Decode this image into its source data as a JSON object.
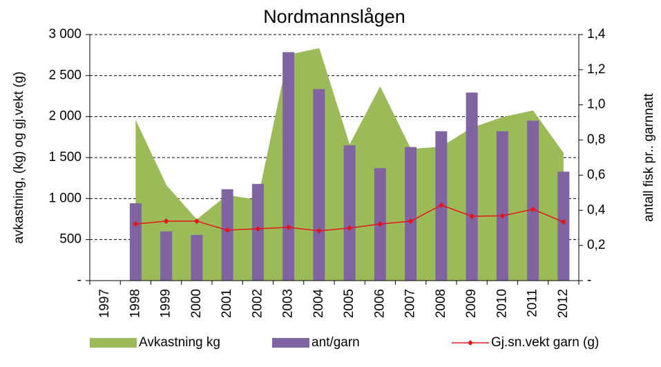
{
  "chart_data": {
    "type": "combo",
    "title": "Nordmannslågen",
    "y_label": "avkastning, (kg) og gj.vekt (g)",
    "y2_label": "antall fisk pr.. garnnatt",
    "categories": [
      "1997",
      "1998",
      "1999",
      "2000",
      "2001",
      "2002",
      "2003",
      "2004",
      "2005",
      "2006",
      "2007",
      "2008",
      "2009",
      "2010",
      "2011",
      "2012"
    ],
    "series": [
      {
        "name": "Avkastning kg",
        "kind": "area",
        "color": "#9bbb59",
        "values": [
          null,
          1950,
          1160,
          740,
          1040,
          980,
          2750,
          2830,
          1650,
          2360,
          1600,
          1630,
          1860,
          1990,
          2070,
          1550
        ]
      },
      {
        "name": "ant/garn",
        "kind": "bar",
        "axis": "y2",
        "color": "#8064a2",
        "values": [
          null,
          0.44,
          0.28,
          0.26,
          0.52,
          0.55,
          1.3,
          1.09,
          0.77,
          0.64,
          0.76,
          0.85,
          1.07,
          0.85,
          0.91,
          0.62
        ]
      },
      {
        "name": "Gj.sn.vekt garn (g)",
        "kind": "line",
        "color": "#e3151a",
        "values": [
          null,
          690,
          725,
          725,
          615,
          632,
          650,
          607,
          640,
          690,
          725,
          920,
          785,
          790,
          870,
          715
        ]
      }
    ],
    "ylim": [
      0,
      3000
    ],
    "yticks": [
      {
        "value": 0,
        "label": "-"
      },
      500,
      {
        "value": 1000,
        "label": "1 000"
      },
      {
        "value": 1500,
        "label": "1 500"
      },
      {
        "value": 2000,
        "label": "2 000"
      },
      {
        "value": 2500,
        "label": "2 500"
      },
      {
        "value": 3000,
        "label": "3 000"
      }
    ],
    "y2lim": [
      0,
      1.4
    ],
    "y2ticks": [
      {
        "value": 0,
        "label": "-"
      },
      {
        "value": 0.2,
        "label": "0,2"
      },
      {
        "value": 0.4,
        "label": "0,4"
      },
      {
        "value": 0.6,
        "label": "0,6"
      },
      {
        "value": 0.8,
        "label": "0,8"
      },
      {
        "value": 1.0,
        "label": "1,0"
      },
      {
        "value": 1.2,
        "label": "1,2"
      },
      {
        "value": 1.4,
        "label": "1,4"
      }
    ],
    "grid": true,
    "legend": "bottom"
  }
}
